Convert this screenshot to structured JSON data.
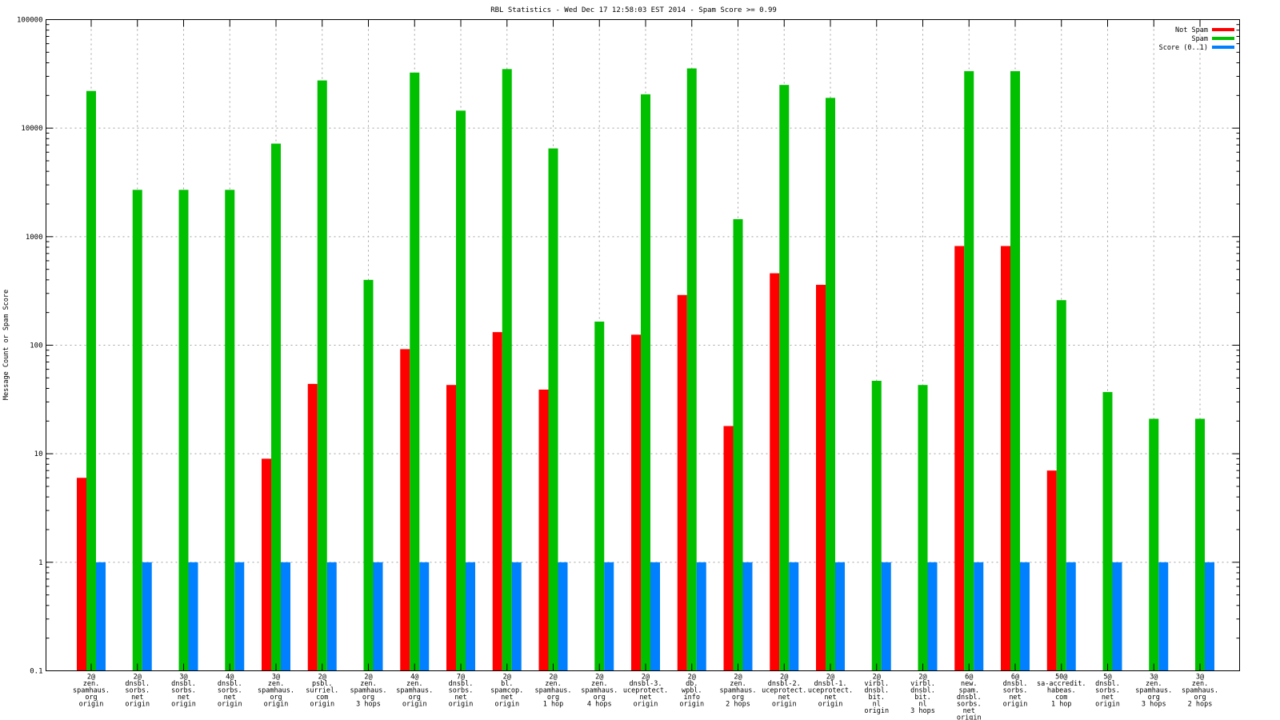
{
  "chart_data": {
    "type": "bar",
    "title": "RBL Statistics - Wed Dec 17 12:58:03 EST 2014 - Spam Score >= 0.99",
    "xlabel": "",
    "ylabel": "Message Count or Spam Score",
    "y_scale": "log",
    "ylim": [
      0.1,
      100000
    ],
    "y_ticks": [
      "0.1",
      "1",
      "10",
      "100",
      "1000",
      "10000",
      "100000"
    ],
    "grid": true,
    "legend_position": "top-right",
    "categories": [
      [
        "2@",
        "zen.",
        "spamhaus.",
        "org",
        "origin"
      ],
      [
        "2@",
        "dnsbl.",
        "sorbs.",
        "net",
        "origin"
      ],
      [
        "3@",
        "dnsbl.",
        "sorbs.",
        "net",
        "origin"
      ],
      [
        "4@",
        "dnsbl.",
        "sorbs.",
        "net",
        "origin"
      ],
      [
        "3@",
        "zen.",
        "spamhaus.",
        "org",
        "origin"
      ],
      [
        "2@",
        "psbl.",
        "surriel.",
        "com",
        "origin"
      ],
      [
        "2@",
        "zen.",
        "spamhaus.",
        "org",
        "3 hops"
      ],
      [
        "4@",
        "zen.",
        "spamhaus.",
        "org",
        "origin"
      ],
      [
        "7@",
        "dnsbl.",
        "sorbs.",
        "net",
        "origin"
      ],
      [
        "2@",
        "bl.",
        "spamcop.",
        "net",
        "origin"
      ],
      [
        "2@",
        "zen.",
        "spamhaus.",
        "org",
        "1 hop"
      ],
      [
        "2@",
        "zen.",
        "spamhaus.",
        "org",
        "4 hops"
      ],
      [
        "2@",
        "dnsbl-3.",
        "uceprotect.",
        "net",
        "origin"
      ],
      [
        "2@",
        "db.",
        "wpbl.",
        "info",
        "origin"
      ],
      [
        "2@",
        "zen.",
        "spamhaus.",
        "org",
        "2 hops"
      ],
      [
        "2@",
        "dnsbl-2.",
        "uceprotect.",
        "net",
        "origin"
      ],
      [
        "2@",
        "dnsbl-1.",
        "uceprotect.",
        "net",
        "origin"
      ],
      [
        "2@",
        "virbl.",
        "dnsbl.",
        "bit.",
        "nl",
        "origin"
      ],
      [
        "2@",
        "virbl.",
        "dnsbl.",
        "bit.",
        "nl",
        "3 hops"
      ],
      [
        "6@",
        "new.",
        "spam.",
        "dnsbl.",
        "sorbs.",
        "net",
        "origin"
      ],
      [
        "6@",
        "dnsbl.",
        "sorbs.",
        "net",
        "origin"
      ],
      [
        "50@",
        "sa-accredit.",
        "habeas.",
        "com",
        "1 hop"
      ],
      [
        "5@",
        "dnsbl.",
        "sorbs.",
        "net",
        "origin"
      ],
      [
        "3@",
        "zen.",
        "spamhaus.",
        "org",
        "3 hops"
      ],
      [
        "3@",
        "zen.",
        "spamhaus.",
        "org",
        "2 hops"
      ]
    ],
    "series": [
      {
        "name": "Not Spam",
        "color": "#ff0000",
        "values": [
          6,
          null,
          null,
          null,
          9,
          44,
          null,
          92,
          43,
          132,
          39,
          null,
          125,
          290,
          18,
          460,
          360,
          null,
          null,
          820,
          820,
          7,
          null,
          null,
          null
        ]
      },
      {
        "name": "Spam",
        "color": "#00c000",
        "values": [
          22000,
          2700,
          2700,
          2700,
          7200,
          27500,
          400,
          32500,
          14500,
          35000,
          6500,
          165,
          20500,
          35500,
          1450,
          25000,
          19000,
          47,
          43,
          33500,
          33500,
          260,
          37,
          21,
          21
        ]
      },
      {
        "name": "Score (0..1)",
        "color": "#0080ff",
        "values": [
          1,
          1,
          1,
          1,
          1,
          1,
          1,
          1,
          1,
          1,
          1,
          1,
          1,
          1,
          1,
          1,
          1,
          1,
          1,
          1,
          1,
          1,
          1,
          1,
          1
        ]
      }
    ]
  }
}
